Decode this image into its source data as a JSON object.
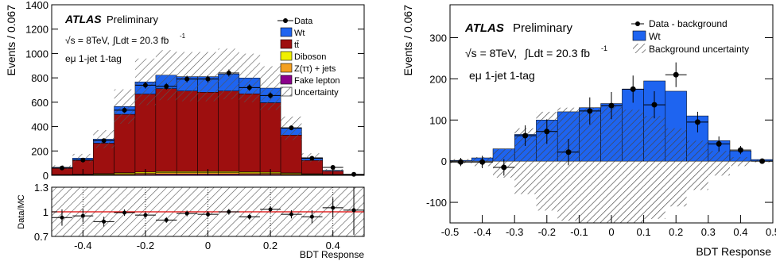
{
  "chart_data": [
    {
      "type": "bar",
      "panel": "left-main",
      "ylabel": "Events / 0.067",
      "xlim": [
        -0.5,
        0.5
      ],
      "ylim": [
        0,
        1400
      ],
      "yticks": [
        0,
        200,
        400,
        600,
        800,
        1000,
        1200,
        1400
      ],
      "stacked": true,
      "bin_edges": [
        -0.5,
        -0.433,
        -0.367,
        -0.3,
        -0.233,
        -0.167,
        -0.1,
        -0.033,
        0.033,
        0.1,
        0.167,
        0.233,
        0.3,
        0.367,
        0.433,
        0.5
      ],
      "series": [
        {
          "name": "Fake lepton",
          "color": "#8b008b",
          "values": [
            2,
            3,
            4,
            6,
            8,
            10,
            10,
            10,
            10,
            9,
            8,
            6,
            4,
            2,
            1
          ]
        },
        {
          "name": "Z(ττ) + jets",
          "color": "#f4a020",
          "values": [
            2,
            3,
            5,
            8,
            10,
            12,
            12,
            12,
            12,
            11,
            10,
            8,
            5,
            3,
            1
          ]
        },
        {
          "name": "Diboson",
          "color": "#f0f000",
          "values": [
            2,
            3,
            5,
            7,
            9,
            10,
            10,
            10,
            10,
            9,
            8,
            6,
            4,
            2,
            1
          ]
        },
        {
          "name": "tt̄",
          "color": "#9e0f0f",
          "values": [
            52,
            115,
            250,
            480,
            640,
            680,
            660,
            650,
            660,
            640,
            570,
            310,
            110,
            28,
            4
          ]
        },
        {
          "name": "Wt",
          "color": "#1e64f0",
          "values": [
            8,
            17,
            33,
            64,
            100,
            110,
            118,
            128,
            140,
            130,
            120,
            56,
            22,
            6,
            1
          ]
        }
      ],
      "data": {
        "name": "Data",
        "x": [
          -0.467,
          -0.4,
          -0.333,
          -0.267,
          -0.2,
          -0.133,
          -0.067,
          0.0,
          0.067,
          0.133,
          0.2,
          0.267,
          0.333,
          0.4,
          0.467
        ],
        "y": [
          60,
          125,
          285,
          535,
          740,
          730,
          790,
          790,
          840,
          720,
          655,
          390,
          140,
          65,
          8
        ]
      },
      "uncertainty": {
        "name": "Uncertainty",
        "rel": 0.25
      },
      "legend": [
        "Data",
        "Wt",
        "tt̄",
        "Diboson",
        "Z(ττ) + jets",
        "Fake lepton",
        "Uncertainty"
      ],
      "legend_placement": "top-right",
      "annotations": {
        "atlas": "ATLAS",
        "preliminary": "Preliminary",
        "lumi_a": "√s = 8TeV,",
        "lumi_b": "∫Ldt = 20.3 fb",
        "lumi_sup": "-1",
        "region": "eμ 1-jet 1-tag"
      }
    },
    {
      "type": "scatter",
      "panel": "left-ratio",
      "ylabel": "Data/MC",
      "xlabel": "BDT Response",
      "xlim": [
        -0.5,
        0.5
      ],
      "ylim": [
        0.7,
        1.3
      ],
      "yticks": [
        0.7,
        1,
        1.3
      ],
      "xticks": [
        -0.4,
        -0.2,
        0,
        0.2,
        0.4
      ],
      "x": [
        -0.467,
        -0.4,
        -0.333,
        -0.267,
        -0.2,
        -0.133,
        -0.067,
        0.0,
        0.067,
        0.133,
        0.2,
        0.267,
        0.333,
        0.4,
        0.467
      ],
      "y": [
        0.93,
        0.95,
        0.88,
        0.99,
        0.96,
        0.9,
        0.98,
        0.97,
        1.0,
        0.94,
        1.03,
        0.97,
        0.94,
        1.05,
        1.02
      ],
      "yerr": [
        0.1,
        0.08,
        0.06,
        0.04,
        0.035,
        0.035,
        0.035,
        0.035,
        0.035,
        0.035,
        0.04,
        0.05,
        0.08,
        0.12,
        0.3
      ]
    },
    {
      "type": "bar",
      "panel": "right",
      "ylabel": "Events / 0.067",
      "xlabel": "BDT Response",
      "xlim": [
        -0.5,
        0.5
      ],
      "ylim": [
        -150,
        380
      ],
      "yticks": [
        -100,
        0,
        100,
        200,
        300
      ],
      "xticks": [
        -0.5,
        -0.4,
        -0.3,
        -0.2,
        -0.1,
        0,
        0.1,
        0.2,
        0.3,
        0.4,
        0.5
      ],
      "bin_edges": [
        -0.5,
        -0.433,
        -0.367,
        -0.3,
        -0.233,
        -0.167,
        -0.1,
        -0.033,
        0.033,
        0.1,
        0.167,
        0.233,
        0.3,
        0.367,
        0.433,
        0.5
      ],
      "series": [
        {
          "name": "Wt",
          "color": "#1e64f0",
          "values": [
            2,
            8,
            30,
            65,
            100,
            120,
            130,
            140,
            175,
            195,
            170,
            110,
            50,
            25,
            4
          ]
        }
      ],
      "data": {
        "name": "Data - background",
        "x": [
          -0.467,
          -0.4,
          -0.333,
          -0.267,
          -0.2,
          -0.133,
          -0.067,
          0.0,
          0.067,
          0.133,
          0.2,
          0.267,
          0.333,
          0.4,
          0.467
        ],
        "y": [
          -2,
          -2,
          -15,
          62,
          72,
          22,
          122,
          135,
          175,
          137,
          210,
          95,
          42,
          27,
          0
        ],
        "yerr": [
          10,
          15,
          20,
          25,
          30,
          32,
          33,
          33,
          33,
          33,
          30,
          25,
          18,
          10,
          5
        ]
      },
      "uncertainty": {
        "name": "Background uncertainty",
        "up": [
          5,
          10,
          30,
          80,
          120,
          130,
          130,
          135,
          125,
          110,
          80,
          50,
          25,
          10,
          3
        ],
        "down": [
          -5,
          -12,
          -40,
          -80,
          -120,
          -145,
          -150,
          -150,
          -150,
          -140,
          -110,
          -70,
          -35,
          -12,
          -3
        ]
      },
      "legend": [
        "Data - background",
        "Wt",
        "Background uncertainty"
      ],
      "legend_placement": "top-right",
      "annotations": {
        "atlas": "ATLAS",
        "preliminary": "Preliminary",
        "lumi_a": "√s = 8TeV,",
        "lumi_b": "∫Ldt = 20.3 fb",
        "lumi_sup": "-1",
        "region": "eμ 1-jet 1-tag"
      }
    }
  ]
}
